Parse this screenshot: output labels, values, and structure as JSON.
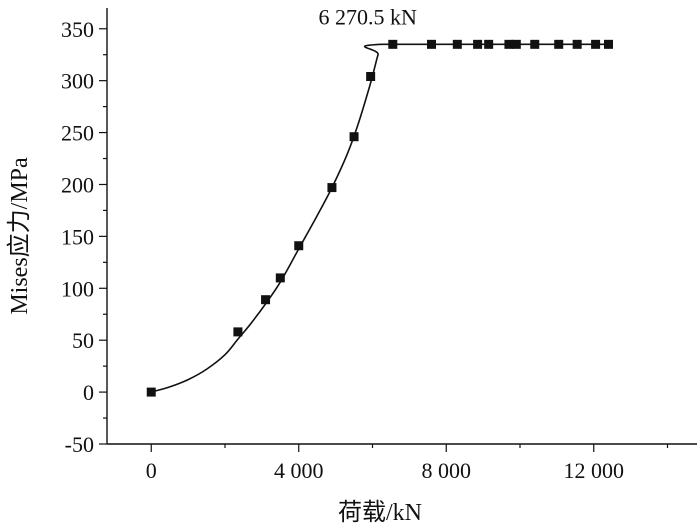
{
  "chart_data": {
    "type": "line",
    "xlabel": "荷载/kN",
    "ylabel": "Mises应力/MPa",
    "xlim": [
      -1200,
      14800
    ],
    "ylim": [
      -50,
      370
    ],
    "xticks": [
      0,
      4000,
      8000,
      12000
    ],
    "xtick_labels": [
      "0",
      "4 000",
      "8 000",
      "12 000"
    ],
    "yticks": [
      -50,
      0,
      50,
      100,
      150,
      200,
      250,
      300,
      350
    ],
    "yticks_labels": [
      "-50",
      "0",
      "50",
      "100",
      "150",
      "200",
      "250",
      "300",
      "350"
    ],
    "annotation": {
      "text": "6 270.5 kN",
      "x": 6270.5,
      "y": 335
    },
    "series": [
      {
        "marker": "square",
        "points": [
          [
            0,
            0
          ],
          [
            2350,
            58
          ],
          [
            3100,
            89
          ],
          [
            3500,
            110
          ],
          [
            4000,
            141
          ],
          [
            4900,
            197
          ],
          [
            5500,
            246
          ],
          [
            5950,
            304
          ],
          [
            6550,
            335
          ],
          [
            7600,
            335
          ],
          [
            8300,
            335
          ],
          [
            8850,
            335
          ],
          [
            9150,
            335
          ],
          [
            9700,
            335
          ],
          [
            9900,
            335
          ],
          [
            10400,
            335
          ],
          [
            11050,
            335
          ],
          [
            11550,
            335
          ],
          [
            12050,
            335
          ],
          [
            12400,
            335
          ]
        ]
      }
    ],
    "curve": [
      [
        0,
        0
      ],
      [
        500,
        5
      ],
      [
        1000,
        12
      ],
      [
        1500,
        22
      ],
      [
        2000,
        36
      ],
      [
        2350,
        51
      ],
      [
        2700,
        66
      ],
      [
        3100,
        85
      ],
      [
        3500,
        106
      ],
      [
        4000,
        138
      ],
      [
        4500,
        170
      ],
      [
        4900,
        197
      ],
      [
        5300,
        228
      ],
      [
        5600,
        257
      ],
      [
        5950,
        298
      ],
      [
        6150,
        325
      ],
      [
        6270.5,
        335
      ],
      [
        12400,
        335
      ]
    ]
  }
}
